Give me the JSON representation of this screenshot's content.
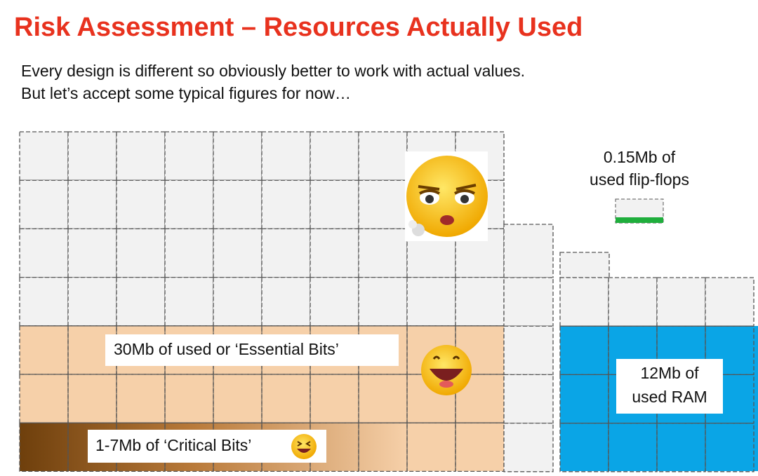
{
  "header": {
    "title": "Risk Assessment – Resources Actually Used"
  },
  "body": [
    "Every design is different so obviously better to work with actual values.",
    "But let’s accept some typical figures for now…"
  ],
  "labels": {
    "flip_flops": [
      "0.15Mb of",
      "used flip-flops"
    ],
    "essential": "30Mb of used or ‘Essential Bits’",
    "critical": "1-7Mb of ‘Critical Bits’",
    "ram": [
      "12Mb of",
      "used RAM"
    ]
  }
}
